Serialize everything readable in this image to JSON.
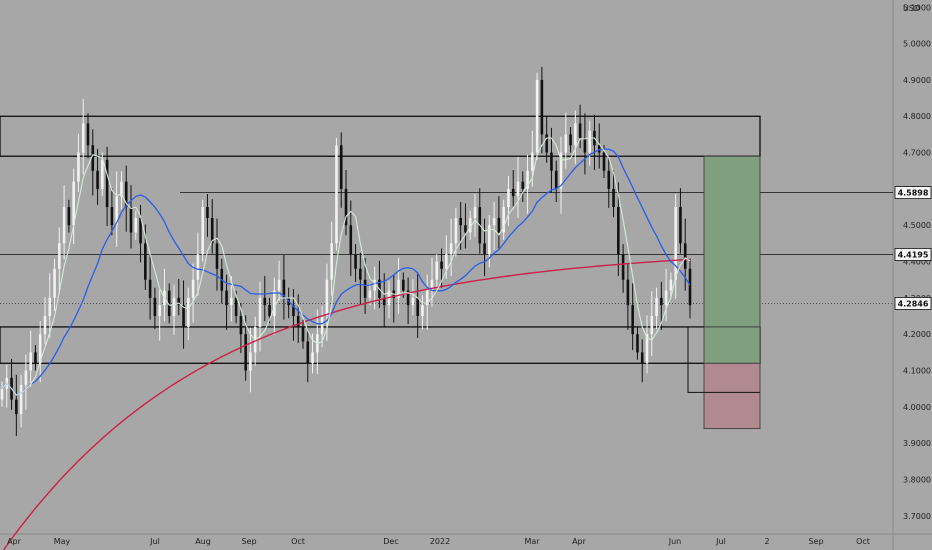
{
  "chart_data": {
    "type": "candlestick",
    "currency_label": "USD",
    "ylim": [
      3.65,
      5.12
    ],
    "y_ticks": [
      "5.1000",
      "5.0000",
      "4.9000",
      "4.8000",
      "4.7000",
      "4.6000",
      "4.5000",
      "4.4000",
      "4.3000",
      "4.2000",
      "4.1000",
      "4.0000",
      "3.9000",
      "3.8000",
      "3.7000"
    ],
    "x_ticks": [
      "Apr",
      "May",
      "Jul",
      "Aug",
      "Sep",
      "Oct",
      "Dec",
      "2022",
      "Mar",
      "Apr",
      "Jun",
      "Jul",
      "2",
      "Sep",
      "Oct"
    ],
    "price_labels": [
      {
        "text": "4.5898",
        "value": 4.5898
      },
      {
        "text": "4.4195",
        "value": 4.4195
      },
      {
        "text": "4.2846",
        "value": 4.2846
      }
    ],
    "horizontal_levels": [
      4.8,
      4.69,
      4.22,
      4.12
    ],
    "position_tool": {
      "entry": 4.22,
      "target": 4.69,
      "stop": 3.94,
      "mid_stop": 4.12,
      "profit_color": "#7f9f7f",
      "loss_color": "#b08a90"
    },
    "series": [
      {
        "name": "",
        "color": "#2b5ee8",
        "role": "moving-average"
      },
      {
        "name": "",
        "color": "#cc1f4a",
        "role": "moving-average"
      },
      {
        "name": "",
        "color": "#d8e8d8",
        "role": "moving-average"
      }
    ],
    "candles_close": [
      4.05,
      4.08,
      4.02,
      3.98,
      4.06,
      4.1,
      4.15,
      4.12,
      4.2,
      4.25,
      4.3,
      4.38,
      4.45,
      4.55,
      4.5,
      4.62,
      4.7,
      4.78,
      4.72,
      4.65,
      4.6,
      4.68,
      4.55,
      4.5,
      4.58,
      4.62,
      4.55,
      4.48,
      4.52,
      4.45,
      4.35,
      4.3,
      4.25,
      4.28,
      4.32,
      4.25,
      4.3,
      4.28,
      4.22,
      4.3,
      4.35,
      4.42,
      4.55,
      4.52,
      4.45,
      4.38,
      4.32,
      4.28,
      4.3,
      4.25,
      4.2,
      4.1,
      4.15,
      4.22,
      4.3,
      4.28,
      4.25,
      4.32,
      4.35,
      4.3,
      4.28,
      4.25,
      4.22,
      4.18,
      4.12,
      4.15,
      4.2,
      4.25,
      4.35,
      4.45,
      4.72,
      4.6,
      4.5,
      4.42,
      4.38,
      4.35,
      4.3,
      4.32,
      4.35,
      4.3,
      4.28,
      4.32,
      4.3,
      4.35,
      4.32,
      4.28,
      4.3,
      4.25,
      4.28,
      4.32,
      4.35,
      4.4,
      4.38,
      4.42,
      4.45,
      4.52,
      4.5,
      4.48,
      4.52,
      4.55,
      4.45,
      4.42,
      4.5,
      4.52,
      4.48,
      4.55,
      4.6,
      4.58,
      4.62,
      4.6,
      4.65,
      4.7,
      4.9,
      4.75,
      4.7,
      4.65,
      4.6,
      4.7,
      4.75,
      4.72,
      4.78,
      4.74,
      4.7,
      4.76,
      4.72,
      4.7,
      4.65,
      4.6,
      4.55,
      4.42,
      4.35,
      4.28,
      4.2,
      4.15,
      4.12,
      4.2,
      4.25,
      4.3,
      4.28,
      4.32,
      4.35,
      4.55,
      4.45,
      4.38,
      4.28
    ]
  }
}
